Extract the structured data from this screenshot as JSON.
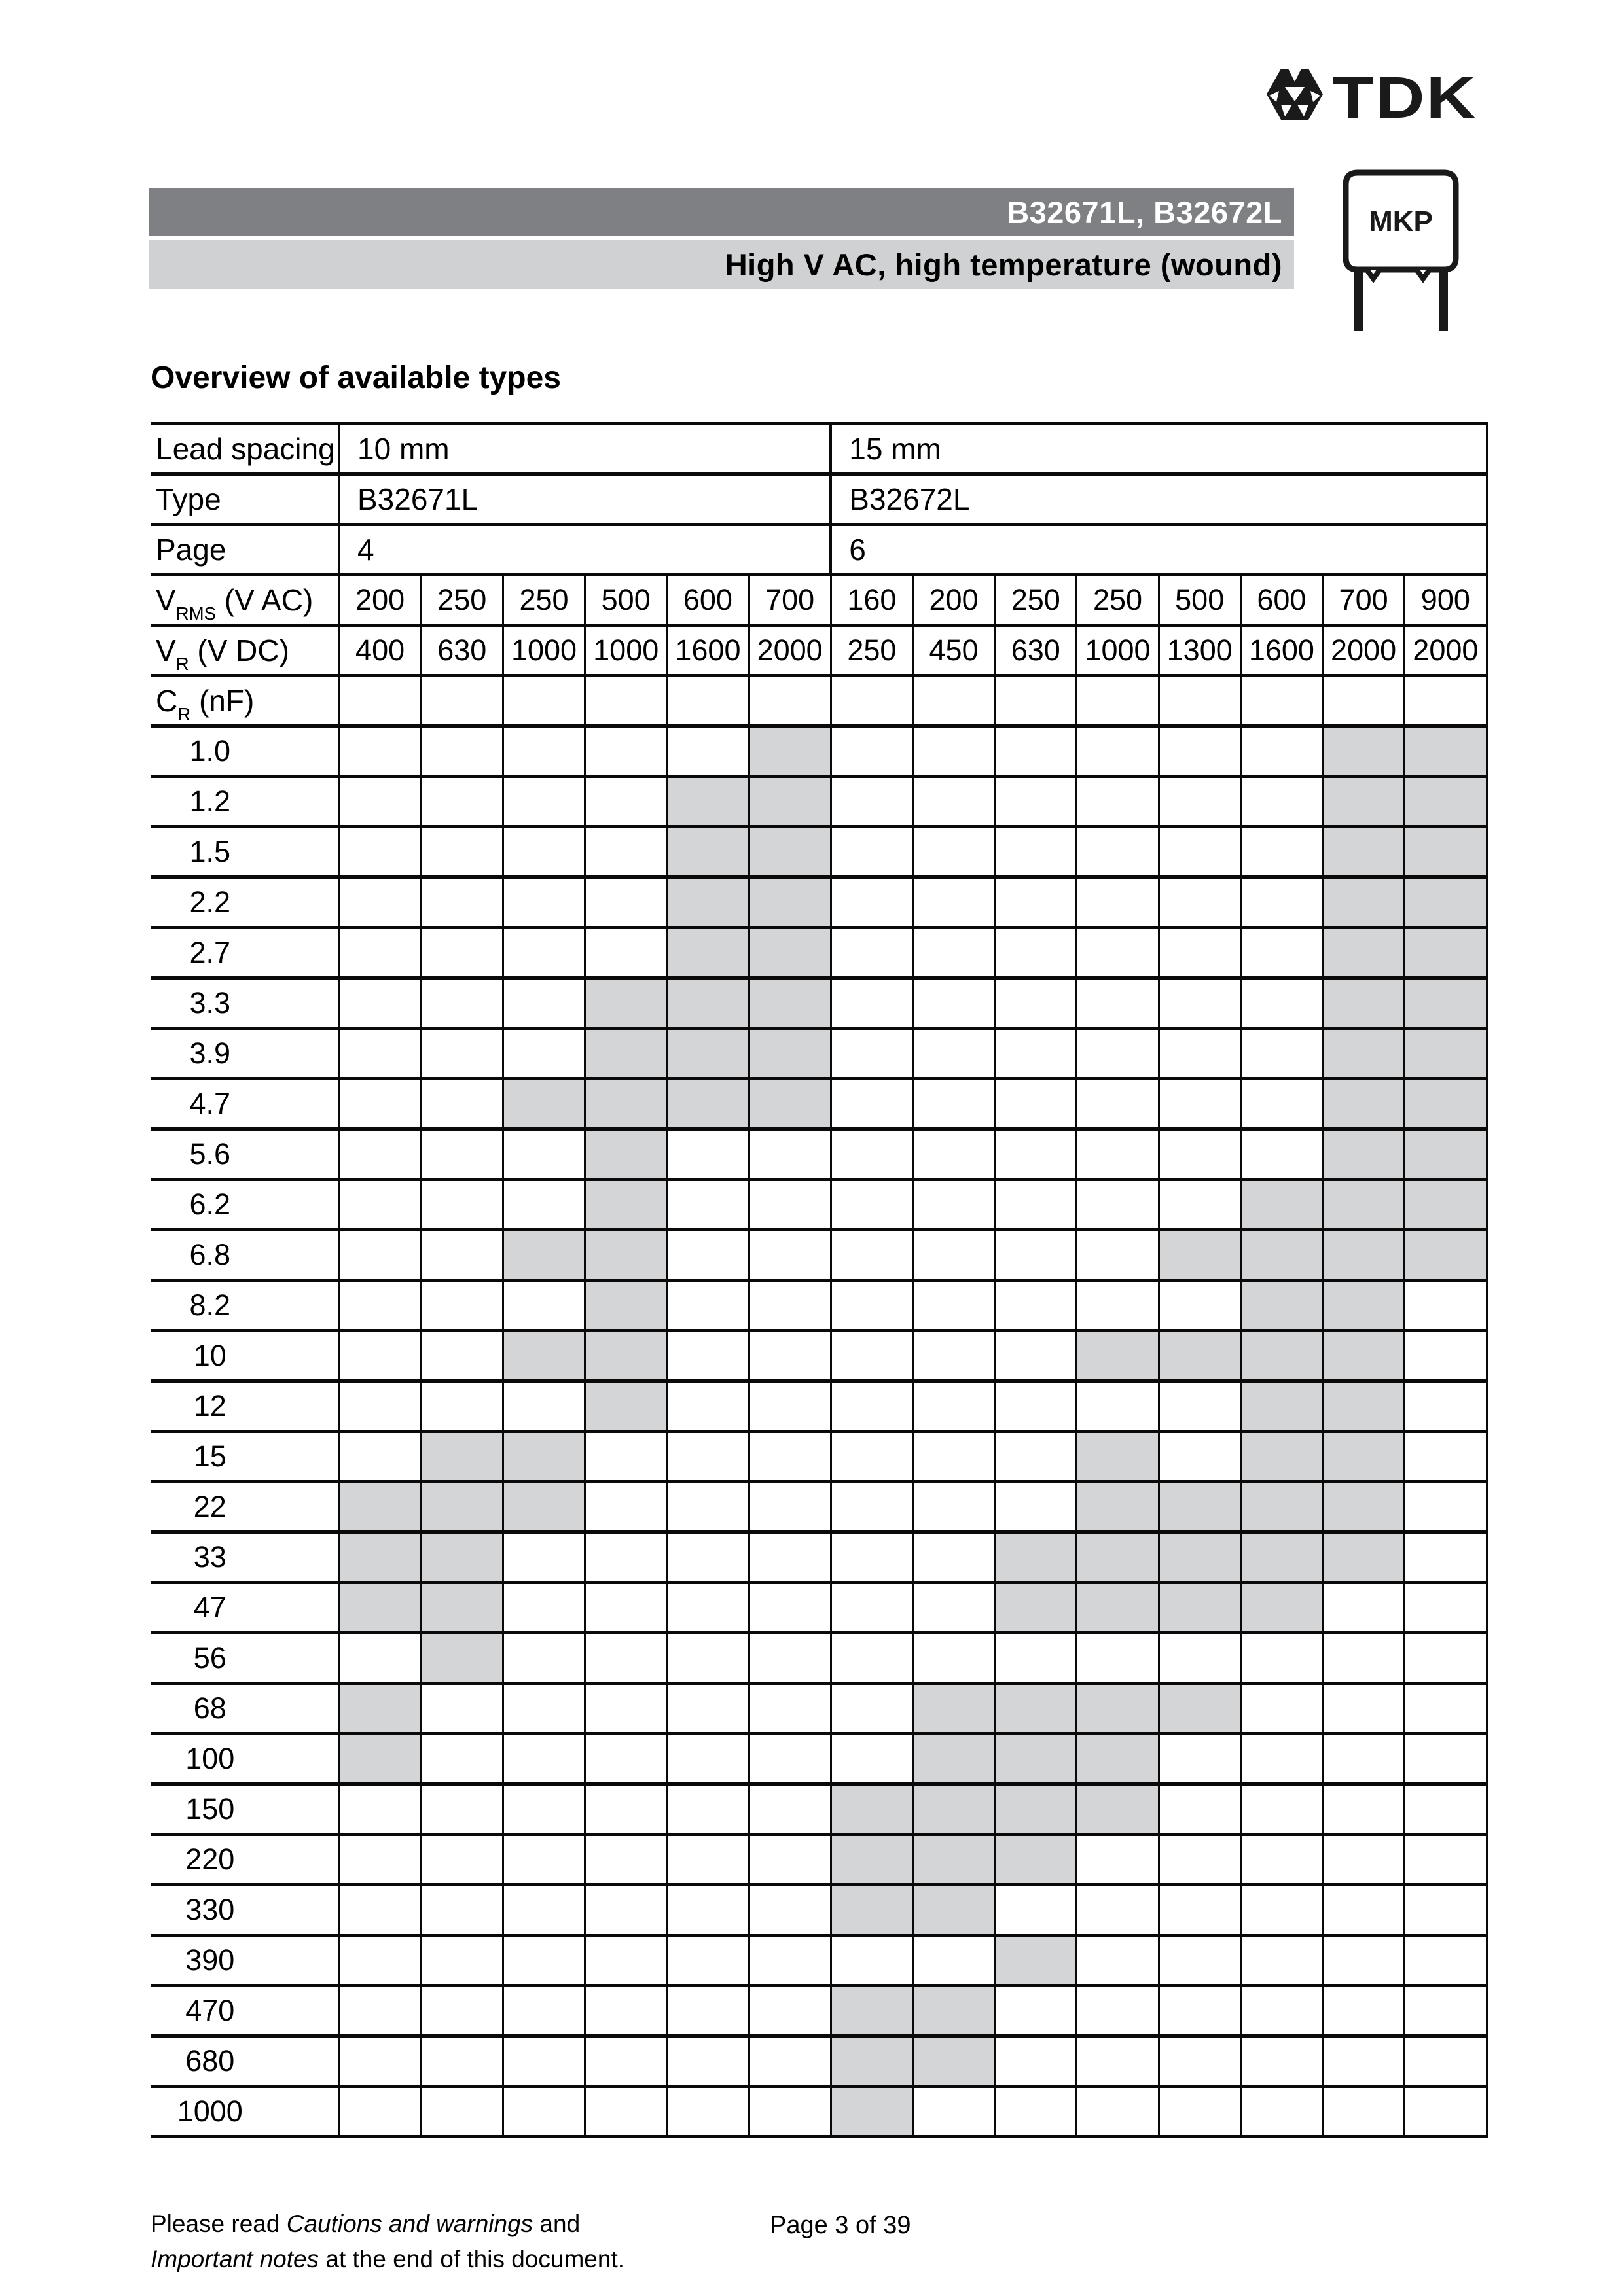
{
  "header": {
    "brand": "TDK",
    "part_numbers": "B32671L, B32672L",
    "subtitle": "High V AC, high temperature (wound)",
    "package_label": "MKP"
  },
  "section_title": "Overview of available types",
  "table": {
    "meta": [
      {
        "label": "Lead spacing",
        "group1": "10 mm",
        "group2": "15 mm"
      },
      {
        "label": "Type",
        "group1": "B32671L",
        "group2": "B32672L"
      },
      {
        "label": "Page",
        "group1": "4",
        "group2": "6"
      }
    ],
    "vrms": {
      "label_base": "V",
      "label_sub": "RMS",
      "label_rest": " (V AC)",
      "values": [
        "200",
        "250",
        "250",
        "500",
        "600",
        "700",
        "160",
        "200",
        "250",
        "250",
        "500",
        "600",
        "700",
        "900"
      ]
    },
    "vr": {
      "label_base": "V",
      "label_sub": "R",
      "label_rest": " (V DC)",
      "values": [
        "400",
        "630",
        "1000",
        "1000",
        "1600",
        "2000",
        "250",
        "450",
        "630",
        "1000",
        "1300",
        "1600",
        "2000",
        "2000"
      ]
    },
    "cr": {
      "label_base": "C",
      "label_sub": "R",
      "label_rest": " (nF)"
    },
    "rows": [
      {
        "cap": "1.0",
        "avail": [
          0,
          0,
          0,
          0,
          0,
          1,
          0,
          0,
          0,
          0,
          0,
          0,
          1,
          1
        ]
      },
      {
        "cap": "1.2",
        "avail": [
          0,
          0,
          0,
          0,
          1,
          1,
          0,
          0,
          0,
          0,
          0,
          0,
          1,
          1
        ]
      },
      {
        "cap": "1.5",
        "avail": [
          0,
          0,
          0,
          0,
          1,
          1,
          0,
          0,
          0,
          0,
          0,
          0,
          1,
          1
        ]
      },
      {
        "cap": "2.2",
        "avail": [
          0,
          0,
          0,
          0,
          1,
          1,
          0,
          0,
          0,
          0,
          0,
          0,
          1,
          1
        ]
      },
      {
        "cap": "2.7",
        "avail": [
          0,
          0,
          0,
          0,
          1,
          1,
          0,
          0,
          0,
          0,
          0,
          0,
          1,
          1
        ]
      },
      {
        "cap": "3.3",
        "avail": [
          0,
          0,
          0,
          1,
          1,
          1,
          0,
          0,
          0,
          0,
          0,
          0,
          1,
          1
        ]
      },
      {
        "cap": "3.9",
        "avail": [
          0,
          0,
          0,
          1,
          1,
          1,
          0,
          0,
          0,
          0,
          0,
          0,
          1,
          1
        ]
      },
      {
        "cap": "4.7",
        "avail": [
          0,
          0,
          1,
          1,
          1,
          1,
          0,
          0,
          0,
          0,
          0,
          0,
          1,
          1
        ]
      },
      {
        "cap": "5.6",
        "avail": [
          0,
          0,
          0,
          1,
          0,
          0,
          0,
          0,
          0,
          0,
          0,
          0,
          1,
          1
        ]
      },
      {
        "cap": "6.2",
        "avail": [
          0,
          0,
          0,
          1,
          0,
          0,
          0,
          0,
          0,
          0,
          0,
          1,
          1,
          1
        ]
      },
      {
        "cap": "6.8",
        "avail": [
          0,
          0,
          1,
          1,
          0,
          0,
          0,
          0,
          0,
          0,
          1,
          1,
          1,
          1
        ]
      },
      {
        "cap": "8.2",
        "avail": [
          0,
          0,
          0,
          1,
          0,
          0,
          0,
          0,
          0,
          0,
          0,
          1,
          1,
          0
        ]
      },
      {
        "cap": "10",
        "avail": [
          0,
          0,
          1,
          1,
          0,
          0,
          0,
          0,
          0,
          1,
          1,
          1,
          1,
          0
        ]
      },
      {
        "cap": "12",
        "avail": [
          0,
          0,
          0,
          1,
          0,
          0,
          0,
          0,
          0,
          0,
          0,
          1,
          1,
          0
        ]
      },
      {
        "cap": "15",
        "avail": [
          0,
          1,
          1,
          0,
          0,
          0,
          0,
          0,
          0,
          1,
          0,
          1,
          1,
          0
        ]
      },
      {
        "cap": "22",
        "avail": [
          1,
          1,
          1,
          0,
          0,
          0,
          0,
          0,
          0,
          1,
          1,
          1,
          1,
          0
        ]
      },
      {
        "cap": "33",
        "avail": [
          1,
          1,
          0,
          0,
          0,
          0,
          0,
          0,
          1,
          1,
          1,
          1,
          1,
          0
        ]
      },
      {
        "cap": "47",
        "avail": [
          1,
          1,
          0,
          0,
          0,
          0,
          0,
          0,
          1,
          1,
          1,
          1,
          0,
          0
        ]
      },
      {
        "cap": "56",
        "avail": [
          0,
          1,
          0,
          0,
          0,
          0,
          0,
          0,
          0,
          0,
          0,
          0,
          0,
          0
        ]
      },
      {
        "cap": "68",
        "avail": [
          1,
          0,
          0,
          0,
          0,
          0,
          0,
          1,
          1,
          1,
          1,
          0,
          0,
          0
        ]
      },
      {
        "cap": "100",
        "avail": [
          1,
          0,
          0,
          0,
          0,
          0,
          0,
          1,
          1,
          1,
          0,
          0,
          0,
          0
        ]
      },
      {
        "cap": "150",
        "avail": [
          0,
          0,
          0,
          0,
          0,
          0,
          1,
          1,
          1,
          1,
          0,
          0,
          0,
          0
        ]
      },
      {
        "cap": "220",
        "avail": [
          0,
          0,
          0,
          0,
          0,
          0,
          1,
          1,
          1,
          0,
          0,
          0,
          0,
          0
        ]
      },
      {
        "cap": "330",
        "avail": [
          0,
          0,
          0,
          0,
          0,
          0,
          1,
          1,
          0,
          0,
          0,
          0,
          0,
          0
        ]
      },
      {
        "cap": "390",
        "avail": [
          0,
          0,
          0,
          0,
          0,
          0,
          0,
          0,
          1,
          0,
          0,
          0,
          0,
          0
        ]
      },
      {
        "cap": "470",
        "avail": [
          0,
          0,
          0,
          0,
          0,
          0,
          1,
          1,
          0,
          0,
          0,
          0,
          0,
          0
        ]
      },
      {
        "cap": "680",
        "avail": [
          0,
          0,
          0,
          0,
          0,
          0,
          1,
          1,
          0,
          0,
          0,
          0,
          0,
          0
        ]
      },
      {
        "cap": "1000",
        "avail": [
          0,
          0,
          0,
          0,
          0,
          0,
          1,
          0,
          0,
          0,
          0,
          0,
          0,
          0
        ]
      }
    ]
  },
  "footer": {
    "line1_normal": "Please read ",
    "line1_italic": "Cautions and warnings",
    "line1_end": " and",
    "line2_italic": "Important notes",
    "line2_end": " at the end of this document.",
    "page_info": "Page 3 of 39"
  },
  "colors": {
    "bar_dark": "#7e8083",
    "bar_light": "#cfd1d2",
    "cell_shade": "#d3d5d6"
  }
}
